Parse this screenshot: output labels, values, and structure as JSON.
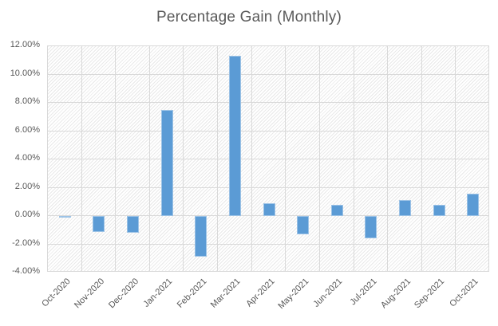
{
  "chart_data": {
    "type": "bar",
    "title": "Percentage Gain (Monthly)",
    "categories": [
      "Oct-2020",
      "Nov-2020",
      "Dec-2020",
      "Jan-2021",
      "Feb-2021",
      "Mar-2021",
      "Apr-2021",
      "May-2021",
      "Jun-2021",
      "Jul-2021",
      "Aug-2021",
      "Sep-2021",
      "Oct-2021"
    ],
    "values": [
      -0.1,
      -1.1,
      -1.2,
      7.5,
      -2.9,
      11.3,
      0.9,
      -1.3,
      0.8,
      -1.6,
      1.1,
      0.8,
      1.6
    ],
    "xlabel": "",
    "ylabel": "",
    "ylim": [
      -4,
      12
    ],
    "y_tick_step": 2,
    "y_tick_labels": [
      "12.00%",
      "10.00%",
      "8.00%",
      "6.00%",
      "4.00%",
      "2.00%",
      "0.00%",
      "-2.00%",
      "-4.00%"
    ],
    "grid": true,
    "legend": "none",
    "plot_area_pattern": "light-diagonal-hatch"
  },
  "colors": {
    "bar_fill": "#5b9bd5",
    "bar_border": "#9dc3e6",
    "gridline": "#d9d9d9",
    "text": "#595959",
    "background": "#ffffff",
    "hatch_line": "#e9e9e9"
  }
}
